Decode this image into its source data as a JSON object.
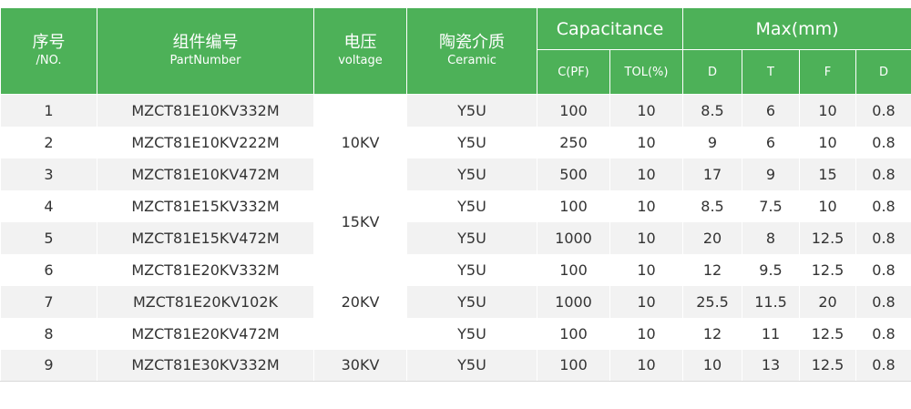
{
  "header": {
    "no_zh": "序号",
    "no_en": "/NO.",
    "part_zh": "组件编号",
    "part_en": "PartNumber",
    "voltage_zh": "电压",
    "voltage_en": "voltage",
    "ceramic_zh": "陶瓷介质",
    "ceramic_en": "Ceramic",
    "capacitance": "Capacitance",
    "max": "Max(mm)",
    "cpf": "C(PF)",
    "tol": "TOL(%)",
    "d": "D",
    "t": "T",
    "f": "F",
    "d2": "D"
  },
  "voltage_groups": [
    "10KV",
    "15KV",
    "20KV",
    "30KV"
  ],
  "rows": [
    {
      "no": "1",
      "part": "MZCT81E10KV332M",
      "ceramic": "Y5U",
      "cpf": "100",
      "tol": "10",
      "d": "8.5",
      "t": "6",
      "f": "10",
      "d2": "0.8"
    },
    {
      "no": "2",
      "part": "MZCT81E10KV222M",
      "ceramic": "Y5U",
      "cpf": "250",
      "tol": "10",
      "d": "9",
      "t": "6",
      "f": "10",
      "d2": "0.8"
    },
    {
      "no": "3",
      "part": "MZCT81E10KV472M",
      "ceramic": "Y5U",
      "cpf": "500",
      "tol": "10",
      "d": "17",
      "t": "9",
      "f": "15",
      "d2": "0.8"
    },
    {
      "no": "4",
      "part": "MZCT81E15KV332M",
      "ceramic": "Y5U",
      "cpf": "100",
      "tol": "10",
      "d": "8.5",
      "t": "7.5",
      "f": "10",
      "d2": "0.8"
    },
    {
      "no": "5",
      "part": "MZCT81E15KV472M",
      "ceramic": "Y5U",
      "cpf": "1000",
      "tol": "10",
      "d": "20",
      "t": "8",
      "f": "12.5",
      "d2": "0.8"
    },
    {
      "no": "6",
      "part": "MZCT81E20KV332M",
      "ceramic": "Y5U",
      "cpf": "100",
      "tol": "10",
      "d": "12",
      "t": "9.5",
      "f": "12.5",
      "d2": "0.8"
    },
    {
      "no": "7",
      "part": "MZCT81E20KV102K",
      "ceramic": "Y5U",
      "cpf": "1000",
      "tol": "10",
      "d": "25.5",
      "t": "11.5",
      "f": "20",
      "d2": "0.8"
    },
    {
      "no": "8",
      "part": "MZCT81E20KV472M",
      "ceramic": "Y5U",
      "cpf": "100",
      "tol": "10",
      "d": "12",
      "t": "11",
      "f": "12.5",
      "d2": "0.8"
    },
    {
      "no": "9",
      "part": "MZCT81E30KV332M",
      "ceramic": "Y5U",
      "cpf": "100",
      "tol": "10",
      "d": "10",
      "t": "13",
      "f": "12.5",
      "d2": "0.8"
    }
  ],
  "colors": {
    "header_bg": "#4db158",
    "header_text": "#ffffff",
    "stripe": "#f2f2f2",
    "body_text": "#333333"
  }
}
